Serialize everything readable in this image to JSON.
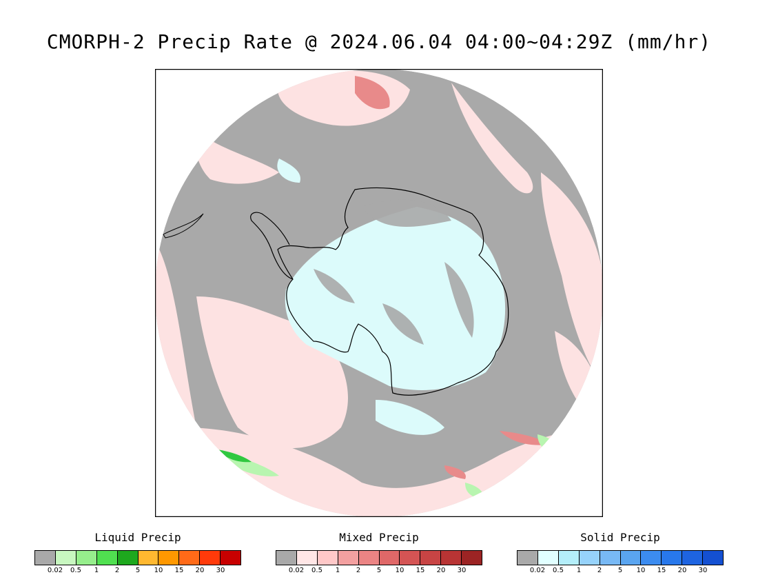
{
  "title": "CMORPH-2 Precip Rate @ 2024.06.04 04:00~04:29Z (mm/hr)",
  "map": {
    "projection": "south-polar-stereographic",
    "colors": {
      "none": "#a9a9a9",
      "mixed_light": "#fde2e2",
      "mixed_mod": "#e88a8a",
      "mixed_heavy": "#d45a5a",
      "solid_light": "#dcfbfb",
      "liquid_light": "#b8f5b0",
      "liquid_mod": "#30c840",
      "coast": "#000000"
    }
  },
  "legends": [
    {
      "title": "Liquid Precip",
      "colors": [
        "#a9a9a9",
        "#c8f7c0",
        "#96ee8c",
        "#50e050",
        "#1ea81e",
        "#ffb830",
        "#ff9800",
        "#ff6a18",
        "#ff3a0a",
        "#c80000"
      ],
      "ticks": [
        "0.02",
        "0.5",
        "1",
        "2",
        "5",
        "10",
        "15",
        "20",
        "30"
      ]
    },
    {
      "title": "Mixed Precip",
      "colors": [
        "#a9a9a9",
        "#ffe6e6",
        "#ffc8c8",
        "#f3a0a0",
        "#eb8484",
        "#e06868",
        "#d45454",
        "#c84444",
        "#b83434",
        "#9c2424"
      ],
      "ticks": [
        "0.02",
        "0.5",
        "1",
        "2",
        "5",
        "10",
        "15",
        "20",
        "30"
      ]
    },
    {
      "title": "Solid Precip",
      "colors": [
        "#a9a9a9",
        "#e1ffff",
        "#b4eefa",
        "#96d2fa",
        "#78b9f5",
        "#5aa5f0",
        "#3c8cf0",
        "#2878eb",
        "#1e64e1",
        "#1450d2"
      ],
      "ticks": [
        "0.02",
        "0.5",
        "1",
        "2",
        "5",
        "10",
        "15",
        "20",
        "30"
      ]
    }
  ]
}
